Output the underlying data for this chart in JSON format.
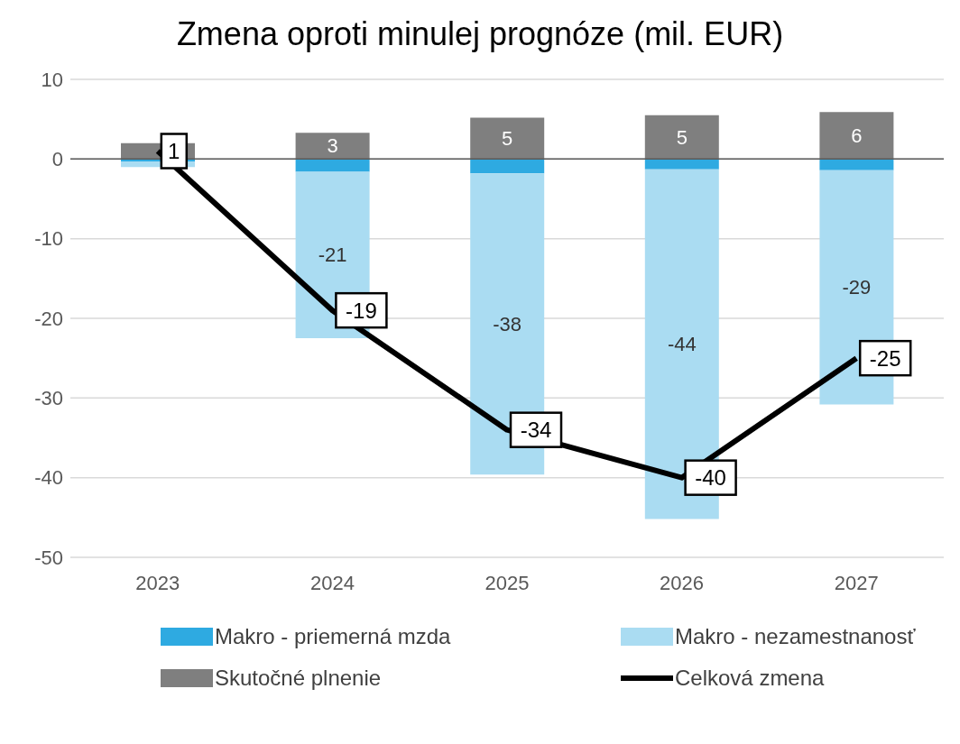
{
  "chart_data": {
    "type": "bar",
    "title": "Zmena oproti minulej prognóze (mil. EUR)",
    "categories": [
      "2023",
      "2024",
      "2025",
      "2026",
      "2027"
    ],
    "stacked": true,
    "series": [
      {
        "name": "Makro - priemerná mzda",
        "color": "#2eaae1",
        "values": [
          -0.3,
          -1.6,
          -1.8,
          -1.3,
          -1.4
        ]
      },
      {
        "name": "Makro - nezamestnanosť",
        "color": "#aadcf2",
        "values": [
          -0.7,
          -20.9,
          -37.8,
          -43.9,
          -29.4
        ],
        "value_labels": [
          null,
          "-21",
          "-38",
          "-44",
          "-29"
        ]
      },
      {
        "name": "Skutočné plnenie",
        "color": "#7f7f7f",
        "values": [
          2.0,
          3.3,
          5.2,
          5.5,
          5.9
        ],
        "value_labels": [
          null,
          "3",
          "5",
          "5",
          "6"
        ]
      },
      {
        "name": "Celková zmena",
        "type": "line",
        "color": "#000000",
        "values": [
          1,
          -19,
          -34,
          -40,
          -25
        ],
        "value_labels": [
          "1",
          "-19",
          "-34",
          "-40",
          "-25"
        ]
      }
    ],
    "ylim": [
      -50,
      10
    ],
    "yticks": [
      -50,
      -40,
      -30,
      -20,
      -10,
      0,
      10
    ],
    "grid": "y",
    "legend": "bottom",
    "marker": "none",
    "ref_lines": [
      {
        "axis": "y",
        "value": 0,
        "color": "#595959"
      }
    ]
  }
}
